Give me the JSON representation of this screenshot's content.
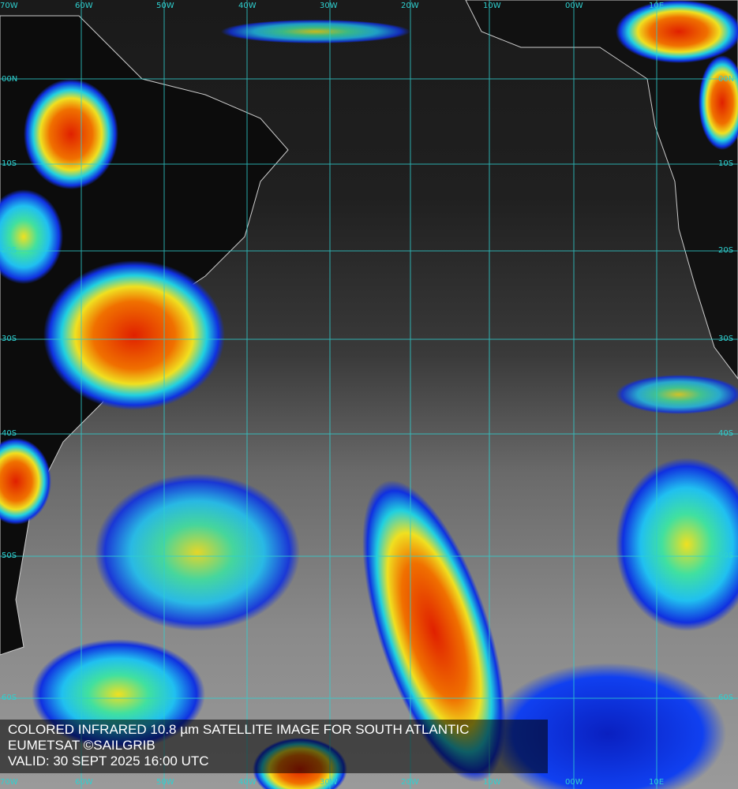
{
  "caption": {
    "line1": "COLORED INFRARED 10.8 µm SATELLITE IMAGE FOR SOUTH ATLANTIC",
    "line2": "EUMETSAT ©SAILGRIB",
    "line3": "VALID:  30 SEPT 2025 16:00 UTC"
  },
  "grid": {
    "color": "#2fd0d0",
    "longitudes": [
      "70W",
      "60W",
      "50W",
      "40W",
      "30W",
      "20W",
      "10W",
      "00W",
      "10E"
    ],
    "latitudes": [
      "00N",
      "10S",
      "20S",
      "30S",
      "40S",
      "50S",
      "60S"
    ]
  },
  "colors": {
    "cold_cloud_red": "#e02000",
    "yellow": "#f0e020",
    "cyan": "#20d0e0",
    "blue": "#1030e0",
    "land": "#0c0c0c"
  }
}
